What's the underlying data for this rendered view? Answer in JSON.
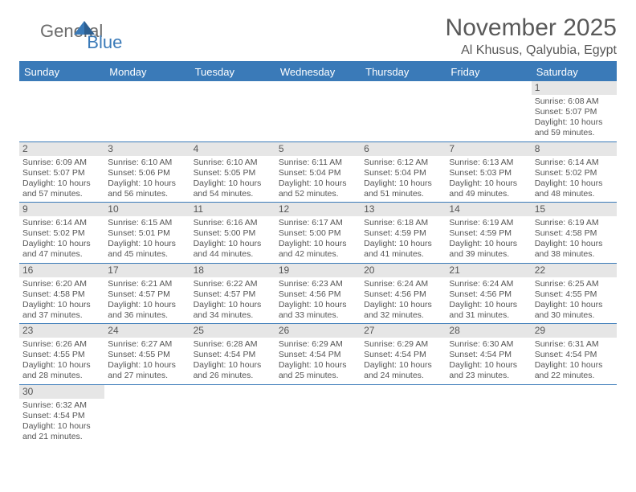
{
  "brand": {
    "part1": "General",
    "part2": "Blue"
  },
  "title": "November 2025",
  "location": "Al Khusus, Qalyubia, Egypt",
  "day_headers": [
    "Sunday",
    "Monday",
    "Tuesday",
    "Wednesday",
    "Thursday",
    "Friday",
    "Saturday"
  ],
  "colors": {
    "accent": "#3a7ab8",
    "header_text": "#ffffff",
    "daynum_bg": "#e6e6e6",
    "text": "#555555",
    "title_text": "#595959"
  },
  "weeks": [
    [
      {
        "empty": true
      },
      {
        "empty": true
      },
      {
        "empty": true
      },
      {
        "empty": true
      },
      {
        "empty": true
      },
      {
        "empty": true
      },
      {
        "n": "1",
        "sr": "Sunrise: 6:08 AM",
        "ss": "Sunset: 5:07 PM",
        "dl1": "Daylight: 10 hours",
        "dl2": "and 59 minutes."
      }
    ],
    [
      {
        "n": "2",
        "sr": "Sunrise: 6:09 AM",
        "ss": "Sunset: 5:07 PM",
        "dl1": "Daylight: 10 hours",
        "dl2": "and 57 minutes."
      },
      {
        "n": "3",
        "sr": "Sunrise: 6:10 AM",
        "ss": "Sunset: 5:06 PM",
        "dl1": "Daylight: 10 hours",
        "dl2": "and 56 minutes."
      },
      {
        "n": "4",
        "sr": "Sunrise: 6:10 AM",
        "ss": "Sunset: 5:05 PM",
        "dl1": "Daylight: 10 hours",
        "dl2": "and 54 minutes."
      },
      {
        "n": "5",
        "sr": "Sunrise: 6:11 AM",
        "ss": "Sunset: 5:04 PM",
        "dl1": "Daylight: 10 hours",
        "dl2": "and 52 minutes."
      },
      {
        "n": "6",
        "sr": "Sunrise: 6:12 AM",
        "ss": "Sunset: 5:04 PM",
        "dl1": "Daylight: 10 hours",
        "dl2": "and 51 minutes."
      },
      {
        "n": "7",
        "sr": "Sunrise: 6:13 AM",
        "ss": "Sunset: 5:03 PM",
        "dl1": "Daylight: 10 hours",
        "dl2": "and 49 minutes."
      },
      {
        "n": "8",
        "sr": "Sunrise: 6:14 AM",
        "ss": "Sunset: 5:02 PM",
        "dl1": "Daylight: 10 hours",
        "dl2": "and 48 minutes."
      }
    ],
    [
      {
        "n": "9",
        "sr": "Sunrise: 6:14 AM",
        "ss": "Sunset: 5:02 PM",
        "dl1": "Daylight: 10 hours",
        "dl2": "and 47 minutes."
      },
      {
        "n": "10",
        "sr": "Sunrise: 6:15 AM",
        "ss": "Sunset: 5:01 PM",
        "dl1": "Daylight: 10 hours",
        "dl2": "and 45 minutes."
      },
      {
        "n": "11",
        "sr": "Sunrise: 6:16 AM",
        "ss": "Sunset: 5:00 PM",
        "dl1": "Daylight: 10 hours",
        "dl2": "and 44 minutes."
      },
      {
        "n": "12",
        "sr": "Sunrise: 6:17 AM",
        "ss": "Sunset: 5:00 PM",
        "dl1": "Daylight: 10 hours",
        "dl2": "and 42 minutes."
      },
      {
        "n": "13",
        "sr": "Sunrise: 6:18 AM",
        "ss": "Sunset: 4:59 PM",
        "dl1": "Daylight: 10 hours",
        "dl2": "and 41 minutes."
      },
      {
        "n": "14",
        "sr": "Sunrise: 6:19 AM",
        "ss": "Sunset: 4:59 PM",
        "dl1": "Daylight: 10 hours",
        "dl2": "and 39 minutes."
      },
      {
        "n": "15",
        "sr": "Sunrise: 6:19 AM",
        "ss": "Sunset: 4:58 PM",
        "dl1": "Daylight: 10 hours",
        "dl2": "and 38 minutes."
      }
    ],
    [
      {
        "n": "16",
        "sr": "Sunrise: 6:20 AM",
        "ss": "Sunset: 4:58 PM",
        "dl1": "Daylight: 10 hours",
        "dl2": "and 37 minutes."
      },
      {
        "n": "17",
        "sr": "Sunrise: 6:21 AM",
        "ss": "Sunset: 4:57 PM",
        "dl1": "Daylight: 10 hours",
        "dl2": "and 36 minutes."
      },
      {
        "n": "18",
        "sr": "Sunrise: 6:22 AM",
        "ss": "Sunset: 4:57 PM",
        "dl1": "Daylight: 10 hours",
        "dl2": "and 34 minutes."
      },
      {
        "n": "19",
        "sr": "Sunrise: 6:23 AM",
        "ss": "Sunset: 4:56 PM",
        "dl1": "Daylight: 10 hours",
        "dl2": "and 33 minutes."
      },
      {
        "n": "20",
        "sr": "Sunrise: 6:24 AM",
        "ss": "Sunset: 4:56 PM",
        "dl1": "Daylight: 10 hours",
        "dl2": "and 32 minutes."
      },
      {
        "n": "21",
        "sr": "Sunrise: 6:24 AM",
        "ss": "Sunset: 4:56 PM",
        "dl1": "Daylight: 10 hours",
        "dl2": "and 31 minutes."
      },
      {
        "n": "22",
        "sr": "Sunrise: 6:25 AM",
        "ss": "Sunset: 4:55 PM",
        "dl1": "Daylight: 10 hours",
        "dl2": "and 30 minutes."
      }
    ],
    [
      {
        "n": "23",
        "sr": "Sunrise: 6:26 AM",
        "ss": "Sunset: 4:55 PM",
        "dl1": "Daylight: 10 hours",
        "dl2": "and 28 minutes."
      },
      {
        "n": "24",
        "sr": "Sunrise: 6:27 AM",
        "ss": "Sunset: 4:55 PM",
        "dl1": "Daylight: 10 hours",
        "dl2": "and 27 minutes."
      },
      {
        "n": "25",
        "sr": "Sunrise: 6:28 AM",
        "ss": "Sunset: 4:54 PM",
        "dl1": "Daylight: 10 hours",
        "dl2": "and 26 minutes."
      },
      {
        "n": "26",
        "sr": "Sunrise: 6:29 AM",
        "ss": "Sunset: 4:54 PM",
        "dl1": "Daylight: 10 hours",
        "dl2": "and 25 minutes."
      },
      {
        "n": "27",
        "sr": "Sunrise: 6:29 AM",
        "ss": "Sunset: 4:54 PM",
        "dl1": "Daylight: 10 hours",
        "dl2": "and 24 minutes."
      },
      {
        "n": "28",
        "sr": "Sunrise: 6:30 AM",
        "ss": "Sunset: 4:54 PM",
        "dl1": "Daylight: 10 hours",
        "dl2": "and 23 minutes."
      },
      {
        "n": "29",
        "sr": "Sunrise: 6:31 AM",
        "ss": "Sunset: 4:54 PM",
        "dl1": "Daylight: 10 hours",
        "dl2": "and 22 minutes."
      }
    ],
    [
      {
        "n": "30",
        "sr": "Sunrise: 6:32 AM",
        "ss": "Sunset: 4:54 PM",
        "dl1": "Daylight: 10 hours",
        "dl2": "and 21 minutes."
      },
      {
        "empty": true
      },
      {
        "empty": true
      },
      {
        "empty": true
      },
      {
        "empty": true
      },
      {
        "empty": true
      },
      {
        "empty": true
      }
    ]
  ]
}
